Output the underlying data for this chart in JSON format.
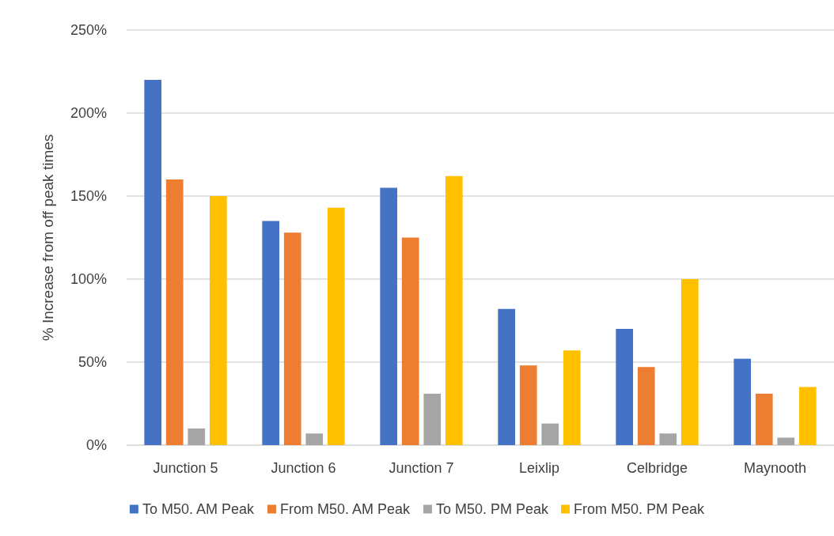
{
  "chart_data": {
    "type": "bar",
    "ylabel": "% Increase from off peak times",
    "categories": [
      "Junction 5",
      "Junction 6",
      "Junction 7",
      "Leixlip",
      "Celbridge",
      "Maynooth"
    ],
    "series": [
      {
        "name": "To M50. AM Peak",
        "color": "#4472c4",
        "values": [
          220,
          135,
          155,
          82,
          70,
          52
        ]
      },
      {
        "name": "From M50. AM Peak",
        "color": "#ed7d31",
        "values": [
          160,
          128,
          125,
          48,
          47,
          31
        ]
      },
      {
        "name": "To M50. PM Peak",
        "color": "#a5a5a5",
        "values": [
          10,
          7,
          31,
          13,
          7,
          4.5
        ]
      },
      {
        "name": "From M50. PM Peak",
        "color": "#ffc000",
        "values": [
          150,
          143,
          162,
          57,
          100,
          35
        ]
      }
    ],
    "ylim": [
      0,
      250
    ],
    "yticks": [
      {
        "value": 0,
        "label": "0%"
      },
      {
        "value": 50,
        "label": "50%"
      },
      {
        "value": 100,
        "label": "100%"
      },
      {
        "value": 150,
        "label": "150%"
      },
      {
        "value": 200,
        "label": "200%"
      },
      {
        "value": 250,
        "label": "250%"
      }
    ],
    "grid": "y",
    "legend": "bottom"
  }
}
